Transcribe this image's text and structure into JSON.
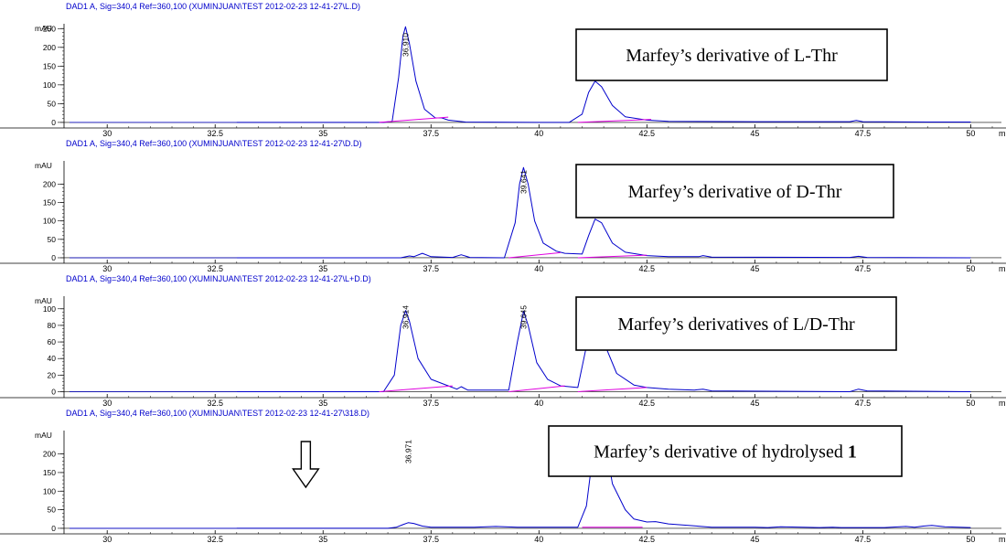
{
  "colors": {
    "trace": "#0000cc",
    "baseline": "#e000e0",
    "header": "#0000cc",
    "axis": "#000000",
    "annotation_border": "#000000"
  },
  "chart_data": [
    {
      "type": "line",
      "header": "DAD1 A, Sig=340,4 Ref=360,100 (XUMINJUAN\\TEST 2012-02-23 12-41-27\\L.D)",
      "ylabel": "mAU",
      "xlim": [
        29,
        50.5
      ],
      "ylim": [
        -10,
        258
      ],
      "yticks": [
        0,
        50,
        100,
        150,
        200,
        250
      ],
      "xticks": [
        "30",
        "32.5",
        "35",
        "37.5",
        "40",
        "42.5",
        "45",
        "47.5",
        "50"
      ],
      "xtick_values": [
        30,
        32.5,
        35,
        37.5,
        40,
        42.5,
        45,
        47.5,
        50
      ],
      "x_unit_label": "m",
      "annotation": {
        "text": "Marfey’s derivative of L-Thr",
        "bold_suffix": ""
      },
      "peak_labels": [
        {
          "x": 36.91,
          "label": "36.910"
        }
      ],
      "series": [
        {
          "x": [
            33.0,
            36.4,
            36.6,
            36.75,
            36.85,
            36.91,
            37.0,
            37.15,
            37.35,
            37.6,
            37.75,
            37.9,
            38.3,
            40.0,
            40.7,
            41.0,
            41.15,
            41.3,
            41.45,
            41.7,
            42.0,
            42.5,
            43.0,
            45.0,
            47.2,
            47.35,
            47.5,
            49.0,
            50.0
          ],
          "y": [
            0,
            0,
            3,
            120,
            230,
            255,
            210,
            110,
            35,
            12,
            12,
            6,
            1,
            0,
            0,
            22,
            80,
            110,
            95,
            45,
            15,
            6,
            3,
            2,
            2,
            5,
            2,
            1,
            1
          ]
        }
      ],
      "baselines": [
        {
          "x": [
            36.3,
            37.9
          ],
          "y": [
            0,
            14
          ]
        },
        {
          "x": [
            40.9,
            42.6
          ],
          "y": [
            0,
            8
          ]
        }
      ]
    },
    {
      "type": "line",
      "header": "DAD1 A, Sig=340,4 Ref=360,100 (XUMINJUAN\\TEST 2012-02-23 12-41-27\\D.D)",
      "ylabel": "mAU",
      "xlim": [
        29,
        50.5
      ],
      "ylim": [
        -10,
        258
      ],
      "yticks": [
        0,
        50,
        100,
        150,
        200
      ],
      "xticks": [
        "30",
        "32.5",
        "35",
        "37.5",
        "40",
        "42.5",
        "45",
        "47.5",
        "50"
      ],
      "xtick_values": [
        30,
        32.5,
        35,
        37.5,
        40,
        42.5,
        45,
        47.5,
        50
      ],
      "x_unit_label": "m",
      "annotation": {
        "text": "Marfey’s derivative of D-Thr",
        "bold_suffix": ""
      },
      "peak_labels": [
        {
          "x": 39.641,
          "label": "39.641"
        }
      ],
      "series": [
        {
          "x": [
            33.0,
            36.8,
            37.0,
            37.1,
            37.3,
            37.5,
            38.0,
            38.2,
            38.4,
            39.2,
            39.45,
            39.55,
            39.641,
            39.75,
            39.9,
            40.1,
            40.4,
            40.6,
            41.0,
            41.15,
            41.3,
            41.45,
            41.7,
            42.0,
            42.5,
            43.0,
            43.7,
            43.8,
            44.0,
            47.2,
            47.4,
            47.6,
            50.0
          ],
          "y": [
            0,
            0,
            5,
            3,
            12,
            3,
            1,
            8,
            1,
            0,
            95,
            200,
            245,
            200,
            100,
            40,
            18,
            12,
            10,
            60,
            105,
            95,
            40,
            15,
            6,
            3,
            3,
            6,
            2,
            1,
            4,
            1,
            0
          ]
        }
      ],
      "baselines": [
        {
          "x": [
            39.3,
            40.5
          ],
          "y": [
            0,
            14
          ]
        },
        {
          "x": [
            40.9,
            42.5
          ],
          "y": [
            0,
            7
          ]
        }
      ]
    },
    {
      "type": "line",
      "header": "DAD1 A, Sig=340,4 Ref=360,100 (XUMINJUAN\\TEST 2012-02-23 12-41-27\\L+D.D)",
      "ylabel": "mAU",
      "xlim": [
        29,
        50.5
      ],
      "ylim": [
        -5,
        113
      ],
      "yticks": [
        0,
        20,
        40,
        60,
        80,
        100
      ],
      "xticks": [
        "30",
        "32.5",
        "35",
        "37.5",
        "40",
        "42.5",
        "45",
        "47.5",
        "50"
      ],
      "xtick_values": [
        30,
        32.5,
        35,
        37.5,
        40,
        42.5,
        45,
        47.5,
        50
      ],
      "x_unit_label": "m",
      "annotation": {
        "text": "Marfey’s derivatives of L/D-Thr",
        "bold_suffix": ""
      },
      "peak_labels": [
        {
          "x": 36.914,
          "label": "36.914"
        },
        {
          "x": 39.645,
          "label": "39.645"
        }
      ],
      "series": [
        {
          "x": [
            33.0,
            36.4,
            36.65,
            36.8,
            36.914,
            37.0,
            37.2,
            37.5,
            37.9,
            38.1,
            38.2,
            38.35,
            39.3,
            39.5,
            39.645,
            39.75,
            39.95,
            40.2,
            40.5,
            40.9,
            41.0,
            41.2,
            41.35,
            41.5,
            41.8,
            42.2,
            42.5,
            43.0,
            43.6,
            43.8,
            44.0,
            47.2,
            47.4,
            47.6,
            50.0
          ],
          "y": [
            0,
            0,
            20,
            80,
            98,
            85,
            40,
            15,
            7,
            3,
            6,
            2,
            2,
            60,
            97,
            80,
            35,
            15,
            7,
            5,
            30,
            80,
            85,
            60,
            22,
            8,
            5,
            3,
            2,
            3,
            1,
            0,
            3,
            1,
            0
          ]
        }
      ],
      "baselines": [
        {
          "x": [
            36.3,
            38.0
          ],
          "y": [
            0,
            7
          ]
        },
        {
          "x": [
            39.3,
            40.6
          ],
          "y": [
            0,
            7
          ]
        },
        {
          "x": [
            40.9,
            42.5
          ],
          "y": [
            0,
            5
          ]
        }
      ]
    },
    {
      "type": "line",
      "header": "DAD1 A, Sig=340,4 Ref=360,100 (XUMINJUAN\\TEST 2012-02-23 12-41-27\\318.D)",
      "ylabel": "mAU",
      "xlim": [
        29,
        50.5
      ],
      "ylim": [
        -10,
        258
      ],
      "yticks": [
        0,
        50,
        100,
        150,
        200
      ],
      "xticks": [
        "30",
        "32.5",
        "35",
        "37.5",
        "40",
        "42.5",
        "45",
        "47.5",
        "50"
      ],
      "xtick_values": [
        30,
        32.5,
        35,
        37.5,
        40,
        42.5,
        45,
        47.5,
        50
      ],
      "x_unit_label": "m",
      "annotation": {
        "text": "Marfey’s derivative of hydrolysed ",
        "bold_suffix": "1"
      },
      "arrow_at_x": 34.6,
      "peak_labels": [
        {
          "x": 36.971,
          "label": "36.971"
        }
      ],
      "series": [
        {
          "x": [
            33.0,
            36.5,
            36.7,
            36.85,
            36.971,
            37.1,
            37.3,
            37.5,
            37.8,
            38.5,
            39.0,
            39.5,
            40.0,
            40.9,
            41.1,
            41.25,
            41.35,
            41.5,
            41.7,
            42.0,
            42.2,
            42.5,
            42.7,
            43.0,
            44.0,
            45.0,
            45.3,
            45.6,
            46.5,
            46.8,
            47.0,
            48.0,
            48.5,
            48.7,
            48.9,
            49.1,
            49.4,
            50.0
          ],
          "y": [
            0,
            0,
            3,
            10,
            15,
            13,
            6,
            3,
            3,
            3,
            5,
            3,
            3,
            3,
            60,
            200,
            258,
            258,
            120,
            50,
            25,
            17,
            18,
            12,
            3,
            3,
            2,
            4,
            2,
            3,
            2,
            2,
            5,
            3,
            6,
            8,
            4,
            2
          ]
        }
      ],
      "baselines": [
        {
          "x": [
            41.0,
            42.4
          ],
          "y": [
            3,
            3
          ]
        }
      ]
    }
  ]
}
